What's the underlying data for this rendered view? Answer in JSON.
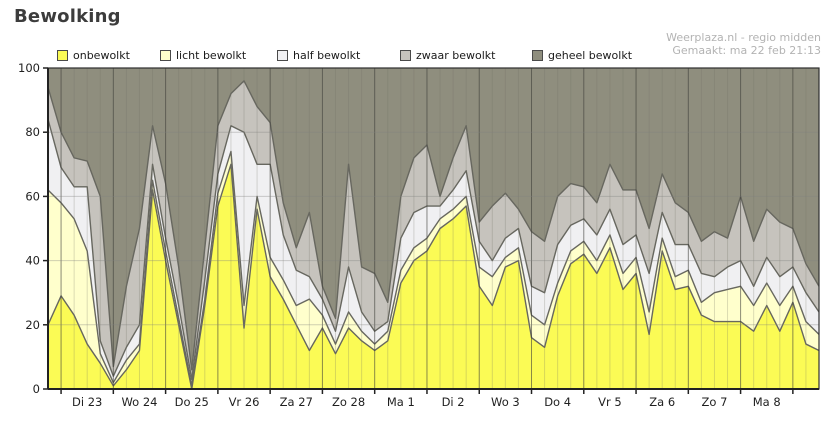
{
  "title": "Bewolking",
  "watermark": {
    "line1": "Weerplaza.nl - regio midden",
    "line2": "Gemaakt: ma 22 feb 21:13"
  },
  "chart_data": {
    "type": "area",
    "stacked": true,
    "unit": "%",
    "title": "Bewolking",
    "ylim": [
      0,
      100
    ],
    "y_ticks": [
      0,
      20,
      40,
      60,
      80,
      100
    ],
    "grid": true,
    "legend_position": "top",
    "points_per_day": 4,
    "first_day_line_index": 1,
    "x_labels": [
      "Di 23",
      "Wo 24",
      "Do 25",
      "Vr 26",
      "Za 27",
      "Zo 28",
      "Ma 1",
      "Di 2",
      "Wo 3",
      "Do 4",
      "Vr 5",
      "Za 6",
      "Zo 7",
      "Ma 8"
    ],
    "boundary_color": "#67675f",
    "axis_color": "#2e2e2e",
    "series": [
      {
        "name": "onbewolkt",
        "color": "#fbfb55",
        "values": [
          20,
          29,
          23,
          14,
          8,
          1,
          6,
          12,
          62,
          40,
          20,
          0,
          26,
          57,
          70,
          19,
          56,
          35,
          28,
          20,
          12,
          19,
          11,
          19,
          15,
          12,
          15,
          33,
          40,
          43,
          50,
          53,
          57,
          32,
          26,
          38,
          40,
          16,
          13,
          29,
          39,
          42,
          36,
          44,
          31,
          36,
          17,
          43,
          31,
          32,
          23,
          21,
          21,
          21,
          18,
          26,
          18,
          27,
          14,
          12
        ]
      },
      {
        "name": "licht bewolkt",
        "color": "#ffffcc",
        "values": [
          42,
          29,
          30,
          29,
          3,
          1,
          3,
          2,
          3,
          3,
          2,
          1,
          2,
          4,
          4,
          7,
          4,
          6,
          6,
          6,
          16,
          4,
          3,
          5,
          3,
          2,
          3,
          4,
          4,
          4,
          3,
          3,
          3,
          6,
          9,
          3,
          4,
          7,
          7,
          4,
          4,
          4,
          4,
          4,
          5,
          5,
          7,
          4,
          4,
          5,
          4,
          9,
          10,
          11,
          8,
          7,
          8,
          5,
          7,
          5
        ]
      },
      {
        "name": "half bewolkt",
        "color": "#f0f0f2",
        "values": [
          22,
          11,
          10,
          20,
          4,
          2,
          4,
          6,
          5,
          4,
          4,
          2,
          6,
          6,
          8,
          54,
          10,
          29,
          14,
          11,
          7,
          5,
          4,
          14,
          6,
          4,
          3,
          10,
          11,
          10,
          4,
          6,
          8,
          8,
          5,
          6,
          6,
          9,
          10,
          12,
          8,
          7,
          8,
          8,
          9,
          7,
          12,
          8,
          10,
          8,
          9,
          5,
          7,
          8,
          6,
          8,
          9,
          6,
          9,
          7
        ]
      },
      {
        "name": "zwaar bewolkt",
        "color": "#c6c3bd",
        "values": [
          10,
          11,
          9,
          8,
          45,
          3,
          19,
          30,
          12,
          17,
          12,
          3,
          10,
          15,
          10,
          16,
          18,
          13,
          10,
          7,
          20,
          4,
          4,
          32,
          14,
          18,
          6,
          13,
          17,
          19,
          3,
          10,
          14,
          6,
          17,
          14,
          6,
          17,
          16,
          15,
          13,
          10,
          10,
          14,
          17,
          14,
          14,
          12,
          13,
          10,
          10,
          14,
          9,
          20,
          14,
          15,
          17,
          12,
          9,
          8
        ]
      },
      {
        "name": "geheel bewolkt",
        "color": "#8f8e7e",
        "values": [
          6,
          20,
          28,
          29,
          40,
          93,
          68,
          50,
          18,
          36,
          62,
          94,
          56,
          18,
          8,
          4,
          12,
          17,
          42,
          56,
          45,
          68,
          78,
          30,
          62,
          64,
          73,
          40,
          28,
          24,
          40,
          28,
          18,
          48,
          43,
          39,
          44,
          51,
          54,
          40,
          36,
          37,
          42,
          30,
          38,
          38,
          50,
          33,
          42,
          45,
          54,
          51,
          53,
          40,
          54,
          44,
          48,
          50,
          61,
          68
        ]
      }
    ]
  }
}
